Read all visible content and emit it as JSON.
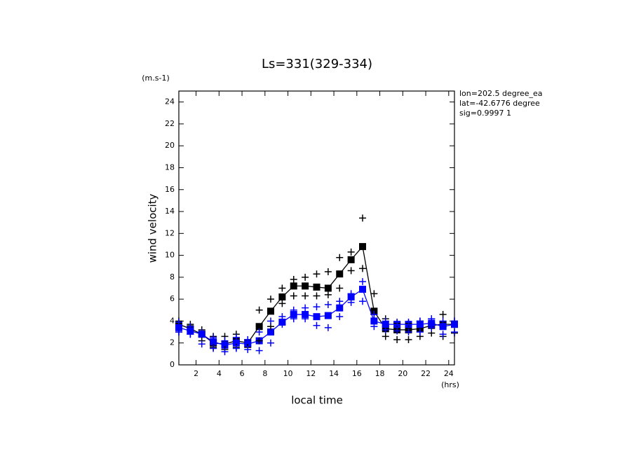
{
  "chart_data": {
    "type": "line",
    "title": "Ls=331(329-334)",
    "y_unit": "(m.s-1)",
    "y_label": "wind velocity",
    "x_label": "local time",
    "x_unit": "(hrs)",
    "annotations": [
      "lon=202.5 degree_ea",
      "lat=-42.6776 degree",
      "sig=0.9997 1"
    ],
    "x": [
      0.5,
      1.5,
      2.5,
      3.5,
      4.5,
      5.5,
      6.5,
      7.5,
      8.5,
      9.5,
      10.5,
      11.5,
      12.5,
      13.5,
      14.5,
      15.5,
      16.5,
      17.5,
      18.5,
      19.5,
      20.5,
      21.5,
      22.5,
      23.5,
      24.5
    ],
    "xlim": [
      0.5,
      24.5
    ],
    "xticks": [
      2,
      4,
      6,
      8,
      10,
      12,
      14,
      16,
      18,
      20,
      22,
      24
    ],
    "ylim": [
      0,
      25
    ],
    "yticks": [
      0,
      2,
      4,
      6,
      8,
      10,
      12,
      14,
      16,
      18,
      20,
      22,
      24
    ],
    "series": [
      {
        "color": "#000000",
        "marker": "square",
        "line": true,
        "values": [
          3.7,
          3.3,
          2.8,
          2.0,
          1.9,
          2.2,
          2.0,
          3.5,
          4.9,
          6.2,
          7.2,
          7.2,
          7.1,
          7.0,
          8.3,
          9.6,
          10.8,
          4.9,
          3.3,
          3.2,
          3.2,
          3.3,
          3.6,
          3.7,
          3.7
        ]
      },
      {
        "color": "#0000ff",
        "marker": "square",
        "line": true,
        "values": [
          3.4,
          3.1,
          2.8,
          2.1,
          1.8,
          2.0,
          1.9,
          2.2,
          3.0,
          3.9,
          4.6,
          4.6,
          4.4,
          4.5,
          5.2,
          6.2,
          6.9,
          4.0,
          3.7,
          3.7,
          3.7,
          3.7,
          3.8,
          3.5,
          3.7
        ]
      },
      {
        "color": "#000000",
        "marker": "plus",
        "line": false,
        "values": [
          4.0,
          3.7,
          3.2,
          2.6,
          2.6,
          2.8,
          2.3,
          5.0,
          6.0,
          7.0,
          7.8,
          8.0,
          8.3,
          8.5,
          9.8,
          10.3,
          13.4,
          6.5,
          4.2,
          3.8,
          3.8,
          4.0,
          4.2,
          4.6,
          4.0
        ]
      },
      {
        "color": "#000000",
        "marker": "plus",
        "line": false,
        "values": [
          3.0,
          2.8,
          2.2,
          1.6,
          1.4,
          1.6,
          1.6,
          2.2,
          3.5,
          5.6,
          6.3,
          6.3,
          6.3,
          6.4,
          7.0,
          8.6,
          8.8,
          4.6,
          2.6,
          2.3,
          2.3,
          2.6,
          2.9,
          2.6,
          2.9
        ]
      },
      {
        "color": "#0000ff",
        "marker": "plus",
        "line": false,
        "values": [
          3.9,
          3.5,
          3.0,
          2.5,
          2.2,
          2.5,
          2.3,
          3.0,
          4.0,
          4.4,
          5.0,
          5.2,
          5.3,
          5.5,
          5.8,
          6.5,
          7.6,
          4.6,
          4.0,
          3.9,
          3.9,
          4.0,
          4.2,
          4.0,
          4.0
        ]
      },
      {
        "color": "#0000ff",
        "marker": "plus",
        "line": false,
        "values": [
          3.0,
          2.8,
          1.9,
          1.5,
          1.2,
          1.5,
          1.4,
          1.3,
          2.0,
          3.7,
          4.2,
          4.2,
          3.6,
          3.4,
          4.4,
          5.7,
          5.8,
          3.5,
          3.2,
          3.1,
          3.0,
          3.0,
          3.4,
          2.8,
          3.0
        ]
      }
    ]
  }
}
